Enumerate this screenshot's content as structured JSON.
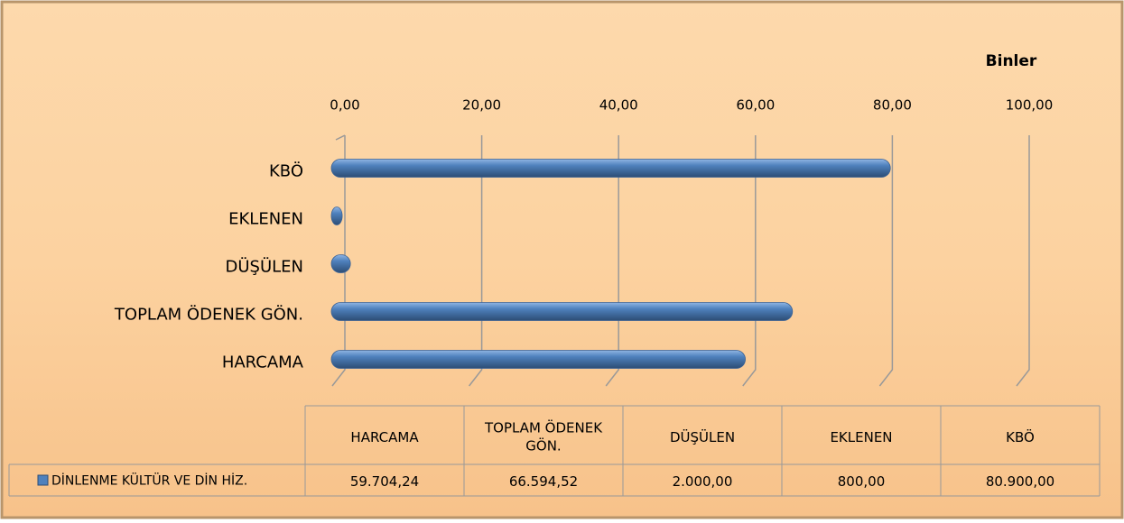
{
  "chart_data": {
    "type": "bar",
    "orientation": "horizontal",
    "unit_label": "Binler",
    "categories": [
      "HARCAMA",
      "TOPLAM ÖDENEK GÖN.",
      "DÜŞÜLEN",
      "EKLENEN",
      "KBÖ"
    ],
    "series": [
      {
        "name": "DİNLENME KÜLTÜR VE DİN HİZ.",
        "color": "#4f81bd",
        "values": [
          59.70424,
          66.59452,
          2.0,
          0.8,
          80.9
        ],
        "value_labels": [
          "59.704,24",
          "66.594,52",
          "2.000,00",
          "800,00",
          "80.900,00"
        ]
      }
    ],
    "xlim": [
      0,
      100
    ],
    "xticks": [
      {
        "value": 0,
        "label": "0,00"
      },
      {
        "value": 20,
        "label": "20,00"
      },
      {
        "value": 40,
        "label": "40,00"
      },
      {
        "value": 60,
        "label": "60,00"
      },
      {
        "value": 80,
        "label": "80,00"
      },
      {
        "value": 100,
        "label": "100,00"
      }
    ],
    "grid": true,
    "data_table": true
  }
}
